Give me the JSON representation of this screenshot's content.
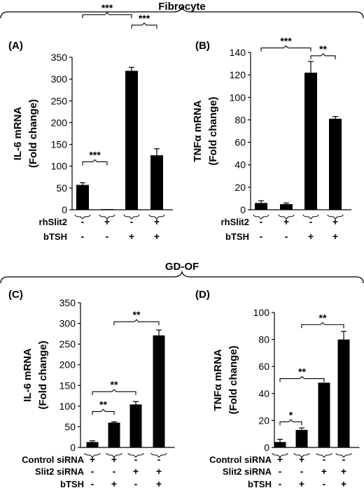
{
  "groups": [
    {
      "title": "Fibrocyte"
    },
    {
      "title": "GD-OF"
    }
  ],
  "chart_data": [
    {
      "type": "bar",
      "panel": "(A)",
      "ylabel": [
        "IL-6 mRNA",
        "(Fold change)"
      ],
      "ylim": [
        0,
        350
      ],
      "yticks": [
        0,
        50,
        100,
        150,
        200,
        250,
        300,
        350
      ],
      "values": [
        57,
        1,
        319,
        125
      ],
      "errors": [
        5,
        0,
        8,
        15
      ],
      "conditions": [
        {
          "label": "rhSlit2",
          "values": [
            "-",
            "+",
            "-",
            "+"
          ]
        },
        {
          "label": "bTSH",
          "values": [
            "-",
            "-",
            "+",
            "+"
          ]
        }
      ],
      "significance": [
        {
          "from": 0,
          "to": 1,
          "label": "***",
          "y": 110
        },
        {
          "from": 0,
          "to": 2,
          "label": "***",
          "y": 448
        },
        {
          "from": 2,
          "to": 3,
          "label": "***",
          "y": 424
        }
      ]
    },
    {
      "type": "bar",
      "panel": "(B)",
      "ylabel": [
        "TNFα mRNA",
        "(Fold change)"
      ],
      "ylim": [
        0,
        140
      ],
      "yticks": [
        0,
        20,
        40,
        60,
        80,
        100,
        120,
        140
      ],
      "values": [
        6,
        5,
        122,
        81
      ],
      "errors": [
        2,
        1,
        10,
        2
      ],
      "conditions": [
        {
          "label": "rhSlit2",
          "values": [
            "-",
            "+",
            "-",
            "+"
          ]
        },
        {
          "label": "bTSH",
          "values": [
            "-",
            "-",
            "+",
            "+"
          ]
        }
      ],
      "significance": [
        {
          "from": 0,
          "to": 2,
          "label": "***",
          "y": 144
        },
        {
          "from": 2,
          "to": 3,
          "label": "**",
          "y": 137
        }
      ]
    },
    {
      "type": "bar",
      "panel": "(C)",
      "ylabel": [
        "IL-6 mRNA",
        "(Fold change)"
      ],
      "ylim": [
        0,
        350
      ],
      "yticks": [
        0,
        50,
        100,
        150,
        200,
        250,
        300,
        350
      ],
      "values": [
        13,
        60,
        104,
        271
      ],
      "errors": [
        3,
        2,
        7,
        13
      ],
      "conditions": [
        {
          "label": "Control siRNA",
          "values": [
            "+",
            "+",
            "-",
            "-"
          ]
        },
        {
          "label": "Slit2 siRNA",
          "values": [
            "-",
            "-",
            "+",
            "+"
          ]
        },
        {
          "label": "bTSH",
          "values": [
            "-",
            "+",
            "-",
            "+"
          ]
        }
      ],
      "significance": [
        {
          "from": 0,
          "to": 1,
          "label": "**",
          "y": 87
        },
        {
          "from": 0,
          "to": 2,
          "label": "**",
          "y": 135
        },
        {
          "from": 1,
          "to": 3,
          "label": "**",
          "y": 304
        }
      ]
    },
    {
      "type": "bar",
      "panel": "(D)",
      "ylabel": [
        "TNFα mRNA",
        "(Fold change)"
      ],
      "ylim": [
        0,
        100
      ],
      "yticks": [
        0,
        20,
        40,
        60,
        80,
        100
      ],
      "values": [
        4,
        13,
        48,
        80
      ],
      "errors": [
        2,
        1.5,
        0,
        6
      ],
      "conditions": [
        {
          "label": "Control siRNA",
          "values": [
            "+",
            "+",
            "-",
            "-"
          ]
        },
        {
          "label": "Slit2 siRNA",
          "values": [
            "-",
            "-",
            "+",
            "+"
          ]
        },
        {
          "label": "bTSH",
          "values": [
            "-",
            "+",
            "-",
            "+"
          ]
        }
      ],
      "significance": [
        {
          "from": 0,
          "to": 1,
          "label": "*",
          "y": 19
        },
        {
          "from": 0,
          "to": 2,
          "label": "**",
          "y": 51
        },
        {
          "from": 1,
          "to": 3,
          "label": "**",
          "y": 91
        }
      ]
    }
  ]
}
